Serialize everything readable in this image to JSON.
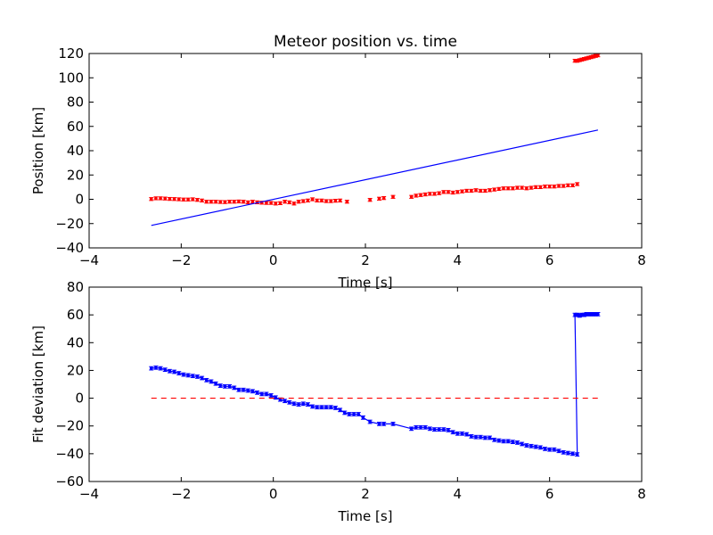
{
  "chart_data": [
    {
      "type": "scatter",
      "title": "Meteor position vs. time",
      "xlabel": "Time [s]",
      "ylabel": "Position [km]",
      "xlim": [
        -4,
        8
      ],
      "ylim": [
        -40,
        120
      ],
      "xticks": [
        "−4",
        "−2",
        "0",
        "2",
        "4",
        "6",
        "8"
      ],
      "yticks": [
        "−40",
        "−20",
        "0",
        "20",
        "40",
        "60",
        "80",
        "100",
        "120"
      ],
      "series": [
        {
          "kind": "errorbar-points",
          "color": "#ff0000",
          "error": 1.2,
          "points": [
            [
              -2.65,
              0.2
            ],
            [
              -2.55,
              0.8
            ],
            [
              -2.45,
              0.8
            ],
            [
              -2.35,
              0.6
            ],
            [
              -2.25,
              0.3
            ],
            [
              -2.15,
              0.2
            ],
            [
              -2.05,
              0.0
            ],
            [
              -1.95,
              -0.2
            ],
            [
              -1.85,
              -0.2
            ],
            [
              -1.75,
              0.0
            ],
            [
              -1.65,
              -0.5
            ],
            [
              -1.55,
              -1.0
            ],
            [
              -1.45,
              -2.0
            ],
            [
              -1.35,
              -2.0
            ],
            [
              -1.25,
              -2.0
            ],
            [
              -1.15,
              -2.2
            ],
            [
              -1.05,
              -2.3
            ],
            [
              -0.95,
              -2.0
            ],
            [
              -0.85,
              -2.0
            ],
            [
              -0.75,
              -1.8
            ],
            [
              -0.65,
              -2.0
            ],
            [
              -0.55,
              -2.5
            ],
            [
              -0.45,
              -2.0
            ],
            [
              -0.35,
              -2.5
            ],
            [
              -0.25,
              -2.8
            ],
            [
              -0.15,
              -3.0
            ],
            [
              -0.05,
              -3.0
            ],
            [
              0.05,
              -3.5
            ],
            [
              0.15,
              -3.2
            ],
            [
              0.25,
              -2.0
            ],
            [
              0.35,
              -2.5
            ],
            [
              0.45,
              -3.5
            ],
            [
              0.55,
              -2.0
            ],
            [
              0.65,
              -1.5
            ],
            [
              0.75,
              -1.0
            ],
            [
              0.85,
              0.0
            ],
            [
              0.95,
              -1.0
            ],
            [
              1.05,
              -1.0
            ],
            [
              1.15,
              -1.5
            ],
            [
              1.25,
              -1.5
            ],
            [
              1.35,
              -1.2
            ],
            [
              1.45,
              -1.0
            ],
            [
              1.6,
              -2.0
            ],
            [
              2.1,
              -0.5
            ],
            [
              2.3,
              0.5
            ],
            [
              2.4,
              1.0
            ],
            [
              2.6,
              2.0
            ],
            [
              3.0,
              2.0
            ],
            [
              3.1,
              3.0
            ],
            [
              3.2,
              3.5
            ],
            [
              3.3,
              4.0
            ],
            [
              3.4,
              4.5
            ],
            [
              3.5,
              4.5
            ],
            [
              3.6,
              5.0
            ],
            [
              3.7,
              6.0
            ],
            [
              3.8,
              6.0
            ],
            [
              3.9,
              5.5
            ],
            [
              4.0,
              6.0
            ],
            [
              4.1,
              6.5
            ],
            [
              4.2,
              7.0
            ],
            [
              4.3,
              7.0
            ],
            [
              4.4,
              7.5
            ],
            [
              4.5,
              7.0
            ],
            [
              4.6,
              7.0
            ],
            [
              4.7,
              7.5
            ],
            [
              4.8,
              8.0
            ],
            [
              4.9,
              8.5
            ],
            [
              5.0,
              9.0
            ],
            [
              5.1,
              9.0
            ],
            [
              5.2,
              9.0
            ],
            [
              5.3,
              9.5
            ],
            [
              5.4,
              9.5
            ],
            [
              5.5,
              9.0
            ],
            [
              5.6,
              9.5
            ],
            [
              5.7,
              10.0
            ],
            [
              5.8,
              10.0
            ],
            [
              5.9,
              10.5
            ],
            [
              6.0,
              10.5
            ],
            [
              6.1,
              10.5
            ],
            [
              6.2,
              11.0
            ],
            [
              6.3,
              11.0
            ],
            [
              6.4,
              11.5
            ],
            [
              6.5,
              11.5
            ],
            [
              6.6,
              12.5
            ],
            [
              6.55,
              114.0
            ],
            [
              6.6,
              114.0
            ],
            [
              6.65,
              114.5
            ],
            [
              6.7,
              115.0
            ],
            [
              6.75,
              115.5
            ],
            [
              6.8,
              116.0
            ],
            [
              6.85,
              116.5
            ],
            [
              6.9,
              117.0
            ],
            [
              6.95,
              117.5
            ],
            [
              7.0,
              118.0
            ],
            [
              7.05,
              118.5
            ]
          ]
        },
        {
          "kind": "fit-line",
          "color": "#0000ff",
          "x": [
            -2.65,
            7.05
          ],
          "y": [
            -21.5,
            57.0
          ]
        }
      ]
    },
    {
      "type": "line",
      "xlabel": "Time [s]",
      "ylabel": "Fit deviation [km]",
      "xlim": [
        -4,
        8
      ],
      "ylim": [
        -60,
        80
      ],
      "xticks": [
        "−4",
        "−2",
        "0",
        "2",
        "4",
        "6",
        "8"
      ],
      "yticks": [
        "−60",
        "−40",
        "−20",
        "0",
        "20",
        "40",
        "60",
        "80"
      ],
      "series": [
        {
          "kind": "errorbar-line",
          "color": "#0000ff",
          "error": 1.2,
          "points": [
            [
              -2.65,
              21.5
            ],
            [
              -2.55,
              22.0
            ],
            [
              -2.45,
              21.5
            ],
            [
              -2.35,
              20.5
            ],
            [
              -2.25,
              19.5
            ],
            [
              -2.15,
              19.0
            ],
            [
              -2.05,
              18.0
            ],
            [
              -1.95,
              17.0
            ],
            [
              -1.85,
              16.5
            ],
            [
              -1.75,
              16.0
            ],
            [
              -1.65,
              15.5
            ],
            [
              -1.55,
              14.5
            ],
            [
              -1.45,
              13.0
            ],
            [
              -1.35,
              12.0
            ],
            [
              -1.25,
              10.5
            ],
            [
              -1.15,
              9.0
            ],
            [
              -1.05,
              8.5
            ],
            [
              -0.95,
              8.5
            ],
            [
              -0.85,
              7.5
            ],
            [
              -0.75,
              6.0
            ],
            [
              -0.65,
              6.0
            ],
            [
              -0.55,
              5.5
            ],
            [
              -0.45,
              5.0
            ],
            [
              -0.35,
              4.0
            ],
            [
              -0.25,
              3.0
            ],
            [
              -0.15,
              3.0
            ],
            [
              -0.05,
              2.0
            ],
            [
              0.05,
              0.5
            ],
            [
              0.15,
              -1.0
            ],
            [
              0.25,
              -2.0
            ],
            [
              0.35,
              -3.0
            ],
            [
              0.45,
              -4.0
            ],
            [
              0.55,
              -4.5
            ],
            [
              0.65,
              -4.0
            ],
            [
              0.75,
              -4.5
            ],
            [
              0.85,
              -6.0
            ],
            [
              0.95,
              -6.5
            ],
            [
              1.05,
              -6.5
            ],
            [
              1.15,
              -6.5
            ],
            [
              1.25,
              -6.5
            ],
            [
              1.35,
              -7.0
            ],
            [
              1.45,
              -8.5
            ],
            [
              1.55,
              -10.5
            ],
            [
              1.65,
              -11.5
            ],
            [
              1.75,
              -11.5
            ],
            [
              1.85,
              -11.5
            ],
            [
              1.95,
              -14.0
            ],
            [
              2.1,
              -17.0
            ],
            [
              2.3,
              -18.5
            ],
            [
              2.4,
              -18.5
            ],
            [
              2.6,
              -18.5
            ],
            [
              3.0,
              -22.0
            ],
            [
              3.1,
              -21.0
            ],
            [
              3.2,
              -21.0
            ],
            [
              3.3,
              -21.0
            ],
            [
              3.4,
              -22.0
            ],
            [
              3.5,
              -22.5
            ],
            [
              3.6,
              -22.5
            ],
            [
              3.7,
              -22.5
            ],
            [
              3.8,
              -23.0
            ],
            [
              3.9,
              -24.5
            ],
            [
              4.0,
              -25.5
            ],
            [
              4.1,
              -25.5
            ],
            [
              4.2,
              -26.0
            ],
            [
              4.3,
              -27.5
            ],
            [
              4.4,
              -28.0
            ],
            [
              4.5,
              -28.0
            ],
            [
              4.6,
              -28.5
            ],
            [
              4.7,
              -28.5
            ],
            [
              4.8,
              -30.0
            ],
            [
              4.9,
              -30.5
            ],
            [
              5.0,
              -31.0
            ],
            [
              5.1,
              -31.0
            ],
            [
              5.2,
              -31.5
            ],
            [
              5.3,
              -32.0
            ],
            [
              5.4,
              -33.0
            ],
            [
              5.5,
              -34.0
            ],
            [
              5.6,
              -34.5
            ],
            [
              5.7,
              -35.0
            ],
            [
              5.8,
              -35.5
            ],
            [
              5.9,
              -36.5
            ],
            [
              6.0,
              -37.0
            ],
            [
              6.1,
              -37.0
            ],
            [
              6.2,
              -38.0
            ],
            [
              6.3,
              -39.0
            ],
            [
              6.4,
              -39.5
            ],
            [
              6.5,
              -40.0
            ],
            [
              6.6,
              -40.5
            ],
            [
              6.55,
              60.0
            ],
            [
              6.6,
              60.0
            ],
            [
              6.65,
              59.5
            ],
            [
              6.7,
              60.0
            ],
            [
              6.75,
              60.0
            ],
            [
              6.8,
              60.5
            ],
            [
              6.85,
              60.5
            ],
            [
              6.9,
              60.5
            ],
            [
              6.95,
              60.5
            ],
            [
              7.0,
              60.5
            ],
            [
              7.05,
              60.5
            ]
          ]
        },
        {
          "kind": "reference-line",
          "color": "#ff0000",
          "style": "dashed",
          "x": [
            -2.65,
            7.05
          ],
          "y": [
            0,
            0
          ]
        }
      ]
    }
  ]
}
